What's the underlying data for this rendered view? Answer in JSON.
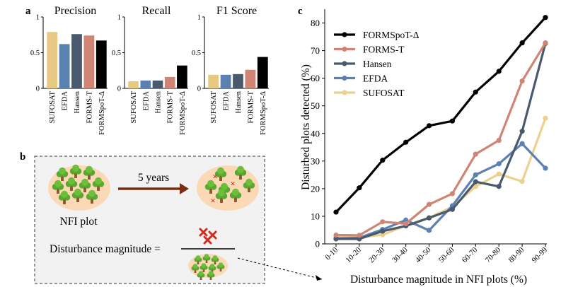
{
  "panel_labels": {
    "a": "a",
    "b": "b",
    "c": "c"
  },
  "chart_data": [
    {
      "type": "bar",
      "title": "Precision",
      "categories": [
        "SUFOSAT",
        "EFDA",
        "Hansen",
        "FORMS-T",
        "FORMSpoT-Δ"
      ],
      "values": [
        0.79,
        0.62,
        0.76,
        0.74,
        0.67
      ],
      "ylim": [
        0,
        1.0
      ],
      "yticks": [
        "0",
        "0.5",
        "1"
      ],
      "colors": [
        "#e8c983",
        "#5b81b1",
        "#4a5a6e",
        "#d08574",
        "#000000"
      ]
    },
    {
      "type": "bar",
      "title": "Recall",
      "categories": [
        "SUFOSAT",
        "EFDA",
        "Hansen",
        "FORMS-T",
        "FORMSpoT-Δ"
      ],
      "values": [
        0.1,
        0.11,
        0.11,
        0.16,
        0.32
      ],
      "ylim": [
        0,
        1.0
      ],
      "yticks": [
        "0",
        "0.5",
        "1"
      ],
      "colors": [
        "#e8c983",
        "#5b81b1",
        "#4a5a6e",
        "#d08574",
        "#000000"
      ]
    },
    {
      "type": "bar",
      "title": "F1 Score",
      "categories": [
        "SUFOSAT",
        "EFDA",
        "Hansen",
        "FORMS-T",
        "FORMSpoT-Δ"
      ],
      "values": [
        0.19,
        0.19,
        0.2,
        0.26,
        0.44
      ],
      "ylim": [
        0,
        1.0
      ],
      "yticks": [
        "0",
        "0.5",
        "1"
      ],
      "colors": [
        "#e8c983",
        "#5b81b1",
        "#4a5a6e",
        "#d08574",
        "#000000"
      ]
    },
    {
      "type": "line",
      "xlabel": "Disturbance magnitude in NFI plots (%)",
      "ylabel": "Disturbed plots detected (%)",
      "categories": [
        "0-10",
        "10-20",
        "20-30",
        "30-40",
        "40-50",
        "50-60",
        "60-70",
        "70-80",
        "80-90",
        "90-99"
      ],
      "ylim": [
        0,
        85
      ],
      "yticks": [
        "0",
        "10",
        "20",
        "30",
        "40",
        "50",
        "60",
        "70",
        "80"
      ],
      "legend": "top-left",
      "series": [
        {
          "name": "FORMSpoT-Δ",
          "color": "#000000",
          "values": [
            11.5,
            20.3,
            30.3,
            36.8,
            42.8,
            44.5,
            55.0,
            62.5,
            72.8,
            82.0
          ]
        },
        {
          "name": "FORMS-T",
          "color": "#d08574",
          "values": [
            3.2,
            3.1,
            8.0,
            7.3,
            14.3,
            18.2,
            32.5,
            37.5,
            59.0,
            72.8
          ]
        },
        {
          "name": "Hansen",
          "color": "#4a5a6e",
          "values": [
            1.8,
            1.8,
            4.6,
            6.5,
            9.4,
            12.5,
            22.5,
            20.8,
            40.8,
            72.6
          ]
        },
        {
          "name": "EFDA",
          "color": "#5b81b1",
          "values": [
            2.0,
            2.2,
            5.2,
            8.6,
            4.9,
            13.8,
            25.0,
            29.0,
            36.3,
            27.4
          ]
        },
        {
          "name": "SUFOSAT",
          "color": "#ecd08f",
          "values": [
            2.8,
            2.4,
            3.3,
            6.6,
            9.5,
            13.4,
            20.8,
            25.3,
            22.6,
            45.5
          ]
        }
      ]
    }
  ],
  "panel_b": {
    "years_label": "5 years",
    "plot_label": "NFI plot",
    "formula_label": "Disturbance magnitude ="
  }
}
